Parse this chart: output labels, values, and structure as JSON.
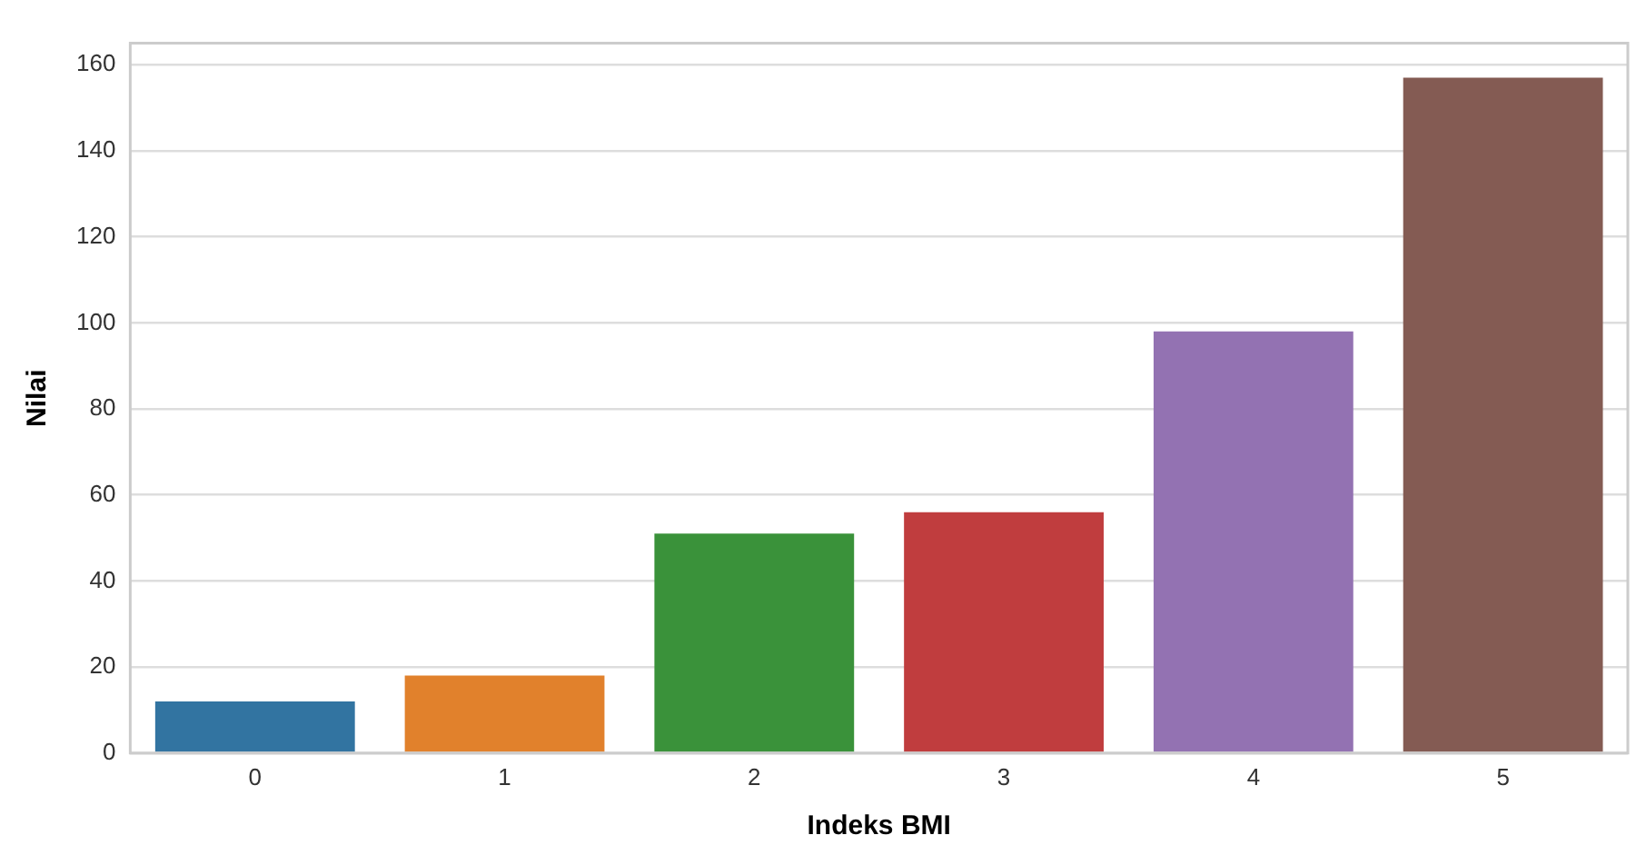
{
  "chart_data": {
    "type": "bar",
    "xlabel": "Indeks BMI",
    "ylabel": "Nilai",
    "categories": [
      "0",
      "1",
      "2",
      "3",
      "4",
      "5"
    ],
    "values": [
      12,
      18,
      51,
      56,
      98,
      157
    ],
    "colors": [
      "#3274a1",
      "#e1812c",
      "#3a923a",
      "#c03d3e",
      "#9372b2",
      "#845b53"
    ],
    "ylim": [
      0,
      165
    ],
    "yticks": [
      0,
      20,
      40,
      60,
      80,
      100,
      120,
      140,
      160
    ],
    "grid": "y"
  }
}
